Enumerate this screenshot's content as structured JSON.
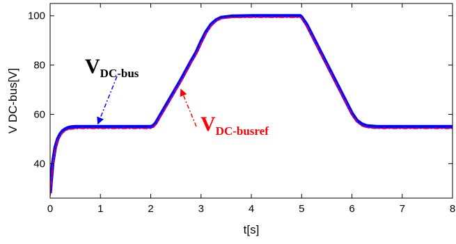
{
  "chart_data": {
    "type": "line",
    "title": "",
    "xlabel": "t[s]",
    "ylabel": "V DC-bus[V]",
    "xlim": [
      0,
      8
    ],
    "ylim": [
      26,
      105
    ],
    "xticks": [
      "0",
      "1",
      "2",
      "3",
      "4",
      "5",
      "6",
      "7",
      "8"
    ],
    "yticks": [
      "40",
      "60",
      "80",
      "100"
    ],
    "grid": false,
    "legend": "none",
    "series": [
      {
        "name": "V DC-bus",
        "style": "solid",
        "color": "#0000ff",
        "x": [
          0.0,
          0.05,
          0.1,
          0.15,
          0.2,
          0.25,
          0.3,
          0.35,
          0.4,
          0.5,
          0.6,
          0.8,
          1.0,
          1.5,
          2.0,
          2.05,
          2.1,
          2.2,
          2.4,
          2.6,
          2.8,
          2.9,
          3.0,
          3.1,
          3.2,
          3.3,
          3.4,
          3.6,
          4.0,
          4.5,
          4.97,
          5.0,
          5.1,
          5.3,
          5.5,
          5.7,
          5.9,
          6.0,
          6.1,
          6.2,
          6.3,
          6.5,
          7.0,
          7.5,
          8.0
        ],
        "y": [
          28,
          40,
          46.5,
          50,
          52,
          53.3,
          54,
          54.5,
          54.8,
          55,
          55,
          55,
          55,
          55,
          55,
          55.4,
          56.5,
          60,
          67,
          74,
          81.5,
          85,
          89.5,
          93.5,
          96.5,
          98.3,
          99.3,
          99.8,
          100,
          100,
          100,
          99.5,
          96.5,
          88.5,
          80.5,
          72.5,
          64.5,
          60.5,
          57.5,
          56,
          55.3,
          55,
          55,
          55,
          55
        ]
      },
      {
        "name": "V DC-busref",
        "style": "dash-dot",
        "color": "#ff0000",
        "x": [
          0.0,
          0.05,
          0.1,
          0.15,
          0.2,
          0.25,
          0.3,
          0.35,
          0.4,
          0.5,
          0.6,
          0.8,
          1.0,
          1.5,
          2.0,
          2.05,
          2.1,
          2.2,
          2.4,
          2.6,
          2.8,
          2.9,
          3.0,
          3.1,
          3.2,
          3.3,
          3.4,
          3.6,
          4.0,
          4.5,
          4.97,
          5.0,
          5.1,
          5.3,
          5.5,
          5.7,
          5.9,
          6.0,
          6.1,
          6.2,
          6.3,
          6.5,
          7.0,
          7.5,
          8.0
        ],
        "y": [
          27,
          39,
          45.5,
          49.3,
          51.3,
          52.5,
          53.3,
          53.8,
          54,
          54.2,
          54.3,
          54.3,
          54.3,
          54.3,
          54.3,
          54.7,
          55.8,
          59.3,
          66.3,
          73.3,
          80.8,
          84.3,
          88.8,
          92.8,
          95.8,
          97.8,
          98.8,
          99.3,
          99.4,
          99.4,
          99.4,
          98.9,
          95.9,
          87.9,
          79.9,
          71.9,
          63.9,
          59.9,
          56.8,
          55.3,
          54.6,
          54.3,
          54.3,
          54.3,
          54.3
        ]
      }
    ],
    "annotations": [
      {
        "main": "V",
        "sub": "DC-bus",
        "color": "#000000",
        "arrow_color": "#0000ff",
        "x": 0.95,
        "y": 55
      },
      {
        "main": "V",
        "sub": "DC-busref",
        "color": "#ff0000",
        "arrow_color": "#ff0000",
        "x": 2.6,
        "y": 69
      }
    ]
  }
}
